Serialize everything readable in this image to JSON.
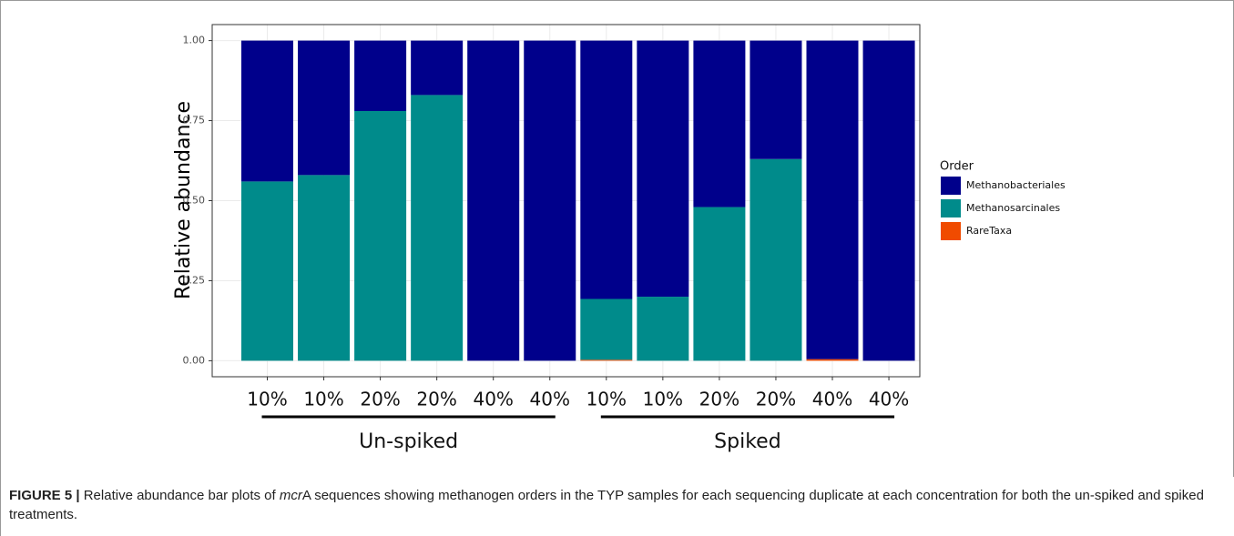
{
  "chart_data": {
    "type": "stacked_bar",
    "ylabel": "Relative abundance",
    "categories": [
      "10%",
      "10%",
      "20%",
      "20%",
      "40%",
      "40%",
      "10%",
      "10%",
      "20%",
      "20%",
      "40%",
      "40%"
    ],
    "groups": [
      "Un-spiked",
      "Spiked"
    ],
    "legend_title": "Order",
    "series": [
      {
        "name": "Methanobacteriales",
        "color": "#00008b",
        "values": [
          0.44,
          0.42,
          0.22,
          0.17,
          1,
          1,
          0.807,
          0.8,
          0.52,
          0.37,
          0.995,
          1
        ]
      },
      {
        "name": "Methanosarcinales",
        "color": "#008b8b",
        "values": [
          0.56,
          0.58,
          0.78,
          0.83,
          0,
          0,
          0.19,
          0.2,
          0.48,
          0.63,
          0,
          0
        ]
      },
      {
        "name": "RareTaxa",
        "color": "#f04b00",
        "values": [
          0,
          0,
          0,
          0,
          0,
          0,
          0.003,
          0,
          0,
          0,
          0.005,
          0
        ]
      }
    ],
    "ylim": [
      -0.05,
      1.05
    ],
    "yticks": [
      {
        "value": 0,
        "label": "0.00"
      },
      {
        "value": 0.25,
        "label": "0.25"
      },
      {
        "value": 0.5,
        "label": "0.50"
      },
      {
        "value": 0.75,
        "label": "0.75"
      },
      {
        "value": 1,
        "label": "1.00"
      }
    ],
    "grid": true
  },
  "caption": {
    "label": "FIGURE 5 |",
    "text_before": " Relative abundance bar plots of ",
    "italic": "mcr",
    "text_after": "A sequences showing methanogen orders in the TYP samples for each sequencing duplicate at each concentration for both the un-spiked and spiked treatments."
  }
}
